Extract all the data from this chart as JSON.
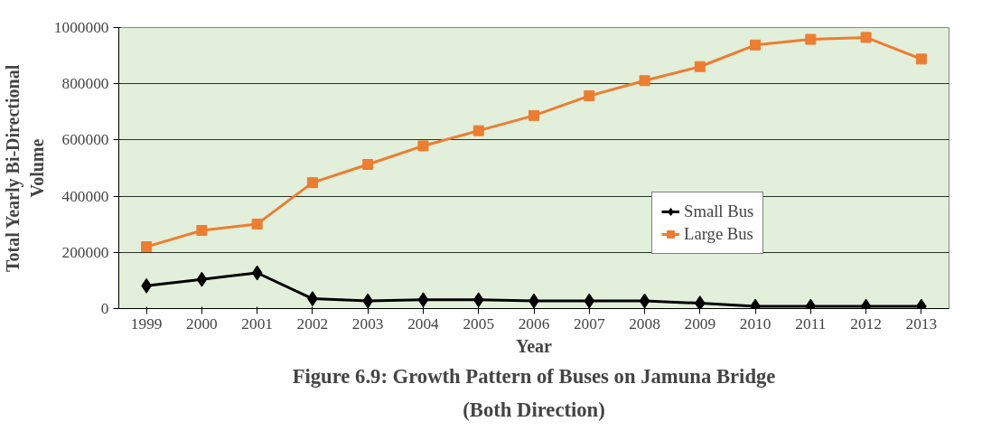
{
  "chart_data": {
    "type": "line",
    "title": "Figure 6.9: Growth Pattern of Buses on Jamuna Bridge\n(Both Direction)",
    "xlabel": "Year",
    "ylabel": "Total Yearly Bi-Directional\nVolume",
    "categories": [
      "1999",
      "2000",
      "2001",
      "2002",
      "2003",
      "2004",
      "2005",
      "2006",
      "2007",
      "2008",
      "2009",
      "2010",
      "2011",
      "2012",
      "2013"
    ],
    "series": [
      {
        "name": "Small Bus",
        "color": "#000000",
        "marker": "diamond",
        "values": [
          81000,
          104000,
          127000,
          35000,
          27000,
          31000,
          31000,
          27000,
          27000,
          27000,
          19000,
          8000,
          8000,
          8000,
          8000
        ]
      },
      {
        "name": "Large Bus",
        "color": "#ed7d31",
        "marker": "square",
        "values": [
          220000,
          278000,
          301000,
          448000,
          513000,
          579000,
          633000,
          687000,
          757000,
          811000,
          861000,
          938000,
          958000,
          965000,
          888000
        ]
      }
    ],
    "ylim": [
      0,
      1000000
    ],
    "yticks": [
      0,
      200000,
      400000,
      600000,
      800000,
      1000000
    ],
    "grid": "y",
    "legend": "right"
  }
}
